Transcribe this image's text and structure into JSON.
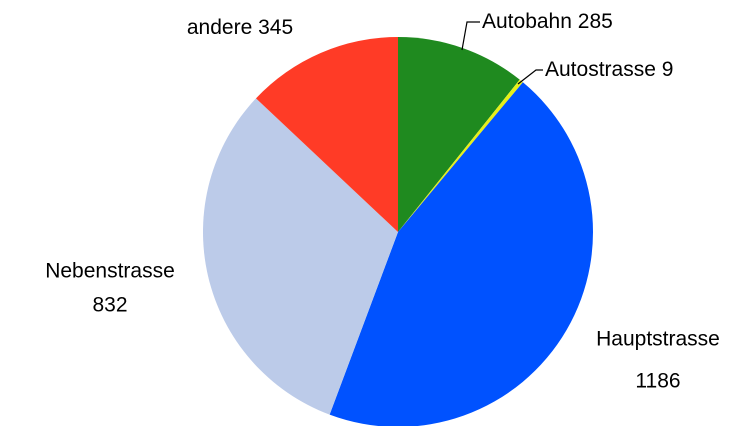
{
  "chart_data": {
    "type": "pie",
    "categories": [
      "Autobahn",
      "Autostrasse",
      "Hauptstrasse",
      "Nebenstrasse",
      "andere"
    ],
    "values": [
      285,
      9,
      1186,
      832,
      345
    ],
    "colors": [
      "#1f8a1f",
      "#e6ef1a",
      "#0052ff",
      "#bccbe9",
      "#ff3b26"
    ]
  }
}
